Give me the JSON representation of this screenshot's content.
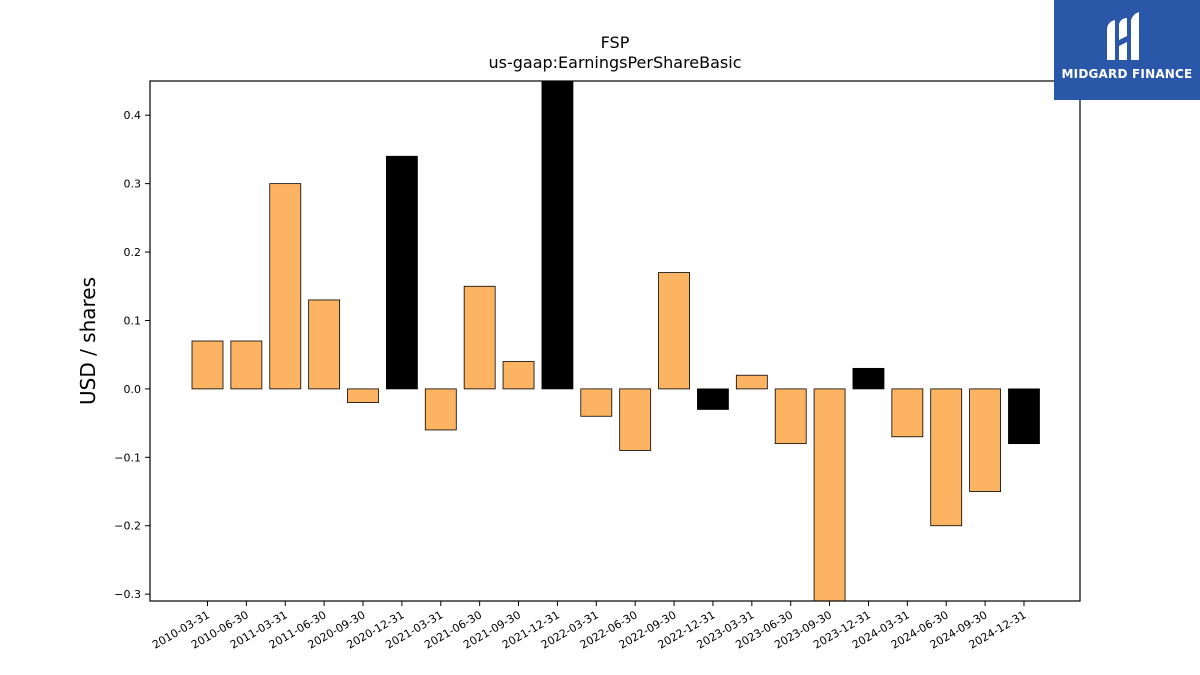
{
  "logo": {
    "text": "MIDGARD FINANCE"
  },
  "chart_data": {
    "type": "bar",
    "title": "FSP",
    "subtitle": "us-gaap:EarningsPerShareBasic",
    "xlabel": "",
    "ylabel": "USD / shares",
    "ylim": [
      -0.31,
      0.45
    ],
    "yticks": [
      -0.3,
      -0.2,
      -0.1,
      0.0,
      0.1,
      0.2,
      0.3,
      0.4
    ],
    "grid": false,
    "colors": {
      "quarter": "#fdb462",
      "annual": "#000000"
    },
    "categories": [
      "2010-03-31",
      "2010-06-30",
      "2011-03-31",
      "2011-06-30",
      "2020-09-30",
      "2020-12-31",
      "2021-03-31",
      "2021-06-30",
      "2021-09-30",
      "2021-12-31",
      "2022-03-31",
      "2022-06-30",
      "2022-09-30",
      "2022-12-31",
      "2023-03-31",
      "2023-06-30",
      "2023-09-30",
      "2023-12-31",
      "2024-03-31",
      "2024-06-30",
      "2024-09-30",
      "2024-12-31"
    ],
    "values": [
      0.07,
      0.07,
      0.3,
      0.13,
      -0.02,
      0.34,
      -0.06,
      0.15,
      0.04,
      0.49,
      -0.04,
      -0.09,
      0.17,
      -0.03,
      0.02,
      -0.08,
      -0.36,
      0.03,
      -0.07,
      -0.2,
      -0.15,
      -0.08
    ],
    "bar_kind": [
      "quarter",
      "quarter",
      "quarter",
      "quarter",
      "quarter",
      "annual",
      "quarter",
      "quarter",
      "quarter",
      "annual",
      "quarter",
      "quarter",
      "quarter",
      "annual",
      "quarter",
      "quarter",
      "quarter",
      "annual",
      "quarter",
      "quarter",
      "quarter",
      "annual"
    ]
  }
}
